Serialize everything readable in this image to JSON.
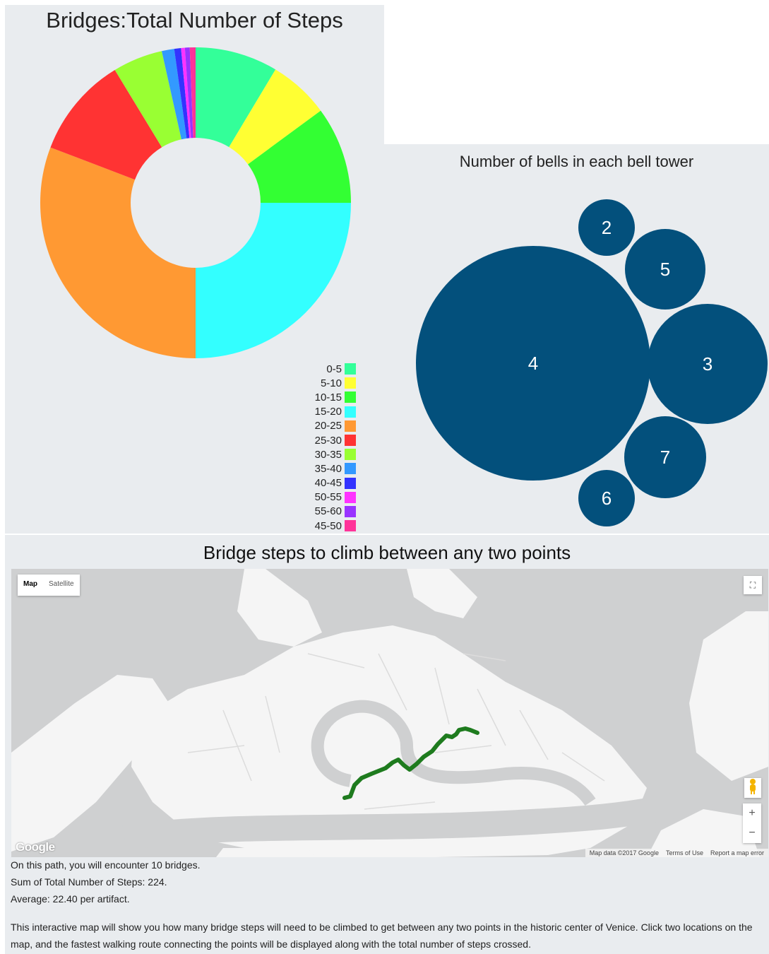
{
  "donut_panel": {
    "title": "Bridges:Total Number of Steps"
  },
  "bubble_panel": {
    "title": "Number of bells in each bell tower"
  },
  "map_panel": {
    "title": "Bridge steps to climb between any two points",
    "map_type": {
      "map": "Map",
      "satellite": "Satellite"
    },
    "zoom_in": "+",
    "zoom_out": "−",
    "logo": "Google",
    "attribution": {
      "data": "Map data ©2017 Google",
      "terms": "Terms of Use",
      "report": "Report a map error"
    },
    "info": {
      "bridges": "On this path, you will encounter 10 bridges.",
      "sum": "Sum of Total Number of Steps: 224.",
      "average": "Average: 22.40 per artifact.",
      "description": "This interactive map will show you how many bridge steps will need to be climbed to get between any two points in the historic center of Venice. Click two locations on the map, and the fastest walking route connecting the points will be displayed along with the total number of steps crossed."
    }
  },
  "chart_data": [
    {
      "type": "pie",
      "title": "Bridges:Total Number of Steps",
      "categories": [
        "0-5",
        "5-10",
        "10-15",
        "15-20",
        "20-25",
        "25-30",
        "30-35",
        "35-40",
        "40-45",
        "50-55",
        "55-60",
        "45-50"
      ],
      "values": [
        8.6,
        6.3,
        10.1,
        25.0,
        30.8,
        10.5,
        5.2,
        1.3,
        0.7,
        0.4,
        0.5,
        0.6
      ],
      "colors": [
        "#33ff99",
        "#ffff33",
        "#33ff33",
        "#33ffff",
        "#ff9933",
        "#ff3333",
        "#99ff33",
        "#3399ff",
        "#3333ff",
        "#ff33ff",
        "#9933ff",
        "#ff3399"
      ],
      "legend": "bottom-right"
    },
    {
      "type": "bubble",
      "title": "Number of bells in each bell tower",
      "labels": [
        "4",
        "2",
        "5",
        "3",
        "7",
        "6"
      ],
      "values": [
        9,
        1,
        2.3,
        2.4,
        2.3,
        1
      ],
      "color": "#03507c"
    }
  ]
}
